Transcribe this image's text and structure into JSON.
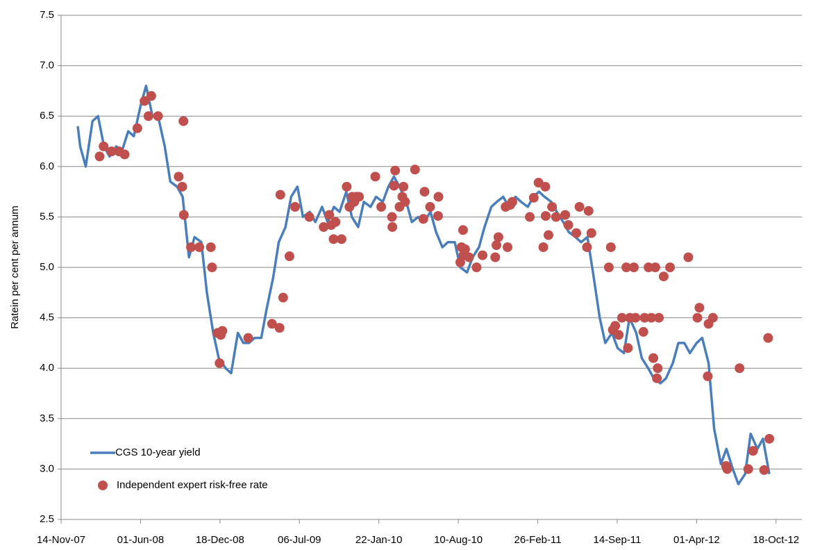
{
  "chart_data": {
    "type": "line",
    "y_label": "Ratein per cent per annum",
    "xlim": [
      "2007-11-14",
      "2012-12-22"
    ],
    "xticks": [
      {
        "value": "2007-11-14",
        "label": "14-Nov-07"
      },
      {
        "value": "2008-06-01",
        "label": "01-Jun-08"
      },
      {
        "value": "2008-12-18",
        "label": "18-Dec-08"
      },
      {
        "value": "2009-07-06",
        "label": "06-Jul-09"
      },
      {
        "value": "2010-01-22",
        "label": "22-Jan-10"
      },
      {
        "value": "2010-08-10",
        "label": "10-Aug-10"
      },
      {
        "value": "2011-02-26",
        "label": "26-Feb-11"
      },
      {
        "value": "2011-09-14",
        "label": "14-Sep-11"
      },
      {
        "value": "2012-04-01",
        "label": "01-Apr-12"
      },
      {
        "value": "2012-10-18",
        "label": "18-Oct-12"
      }
    ],
    "ylim": [
      2.5,
      7.5
    ],
    "yticks": [
      2.5,
      {
        "value": 3,
        "label": "3.0"
      },
      3.5,
      {
        "value": 4,
        "label": "4.0"
      },
      4.5,
      {
        "value": 5,
        "label": "5.0"
      },
      5.5,
      {
        "value": 6,
        "label": "6.0"
      },
      6.5,
      {
        "value": 7,
        "label": "7.0"
      },
      7.5
    ],
    "grid": true,
    "legend": "lower left",
    "series": [
      {
        "name": "CGS 10-year yield",
        "type": "line",
        "color": "#4a7ebb",
        "x": [
          "2007-12-26",
          "2008-01-01",
          "2008-01-15",
          "2008-02-01",
          "2008-02-15",
          "2008-03-01",
          "2008-03-15",
          "2008-04-01",
          "2008-04-15",
          "2008-05-01",
          "2008-05-15",
          "2008-06-01",
          "2008-06-15",
          "2008-07-01",
          "2008-07-15",
          "2008-08-01",
          "2008-08-15",
          "2008-09-01",
          "2008-09-15",
          "2008-10-01",
          "2008-10-15",
          "2008-11-01",
          "2008-11-15",
          "2008-12-01",
          "2008-12-15",
          "2009-01-01",
          "2009-01-15",
          "2009-02-01",
          "2009-02-15",
          "2009-03-01",
          "2009-03-15",
          "2009-04-01",
          "2009-04-15",
          "2009-05-01",
          "2009-05-15",
          "2009-06-01",
          "2009-06-15",
          "2009-07-01",
          "2009-07-15",
          "2009-08-01",
          "2009-08-15",
          "2009-09-01",
          "2009-09-15",
          "2009-10-01",
          "2009-10-15",
          "2009-11-01",
          "2009-11-15",
          "2009-12-01",
          "2009-12-15",
          "2010-01-01",
          "2010-01-15",
          "2010-02-01",
          "2010-02-15",
          "2010-03-01",
          "2010-03-15",
          "2010-04-01",
          "2010-04-15",
          "2010-05-01",
          "2010-05-15",
          "2010-06-01",
          "2010-06-15",
          "2010-07-01",
          "2010-07-15",
          "2010-08-01",
          "2010-08-15",
          "2010-09-01",
          "2010-09-15",
          "2010-10-01",
          "2010-10-15",
          "2010-11-01",
          "2010-11-15",
          "2010-12-01",
          "2010-12-15",
          "2011-01-01",
          "2011-01-15",
          "2011-02-01",
          "2011-02-15",
          "2011-03-01",
          "2011-03-15",
          "2011-04-01",
          "2011-04-15",
          "2011-05-01",
          "2011-05-15",
          "2011-06-01",
          "2011-06-15",
          "2011-07-01",
          "2011-07-15",
          "2011-08-01",
          "2011-08-15",
          "2011-09-01",
          "2011-09-15",
          "2011-10-01",
          "2011-10-15",
          "2011-11-01",
          "2011-11-15",
          "2011-12-01",
          "2011-12-15",
          "2012-01-01",
          "2012-01-15",
          "2012-02-01",
          "2012-02-15",
          "2012-03-01",
          "2012-03-15",
          "2012-04-01",
          "2012-04-15",
          "2012-05-01",
          "2012-05-15",
          "2012-06-01",
          "2012-06-15",
          "2012-07-01",
          "2012-07-15",
          "2012-08-01",
          "2012-08-15",
          "2012-09-01",
          "2012-09-15",
          "2012-10-01"
        ],
        "values": [
          6.4,
          6.2,
          6.0,
          6.45,
          6.5,
          6.2,
          6.1,
          6.2,
          6.15,
          6.35,
          6.3,
          6.6,
          6.8,
          6.5,
          6.5,
          6.2,
          5.85,
          5.8,
          5.7,
          5.1,
          5.3,
          5.25,
          4.75,
          4.35,
          4.1,
          4.0,
          3.95,
          4.35,
          4.25,
          4.25,
          4.3,
          4.3,
          4.6,
          4.9,
          5.25,
          5.4,
          5.7,
          5.8,
          5.5,
          5.55,
          5.45,
          5.6,
          5.45,
          5.6,
          5.55,
          5.75,
          5.5,
          5.4,
          5.65,
          5.6,
          5.7,
          5.65,
          5.8,
          5.9,
          5.8,
          5.65,
          5.45,
          5.5,
          5.45,
          5.55,
          5.35,
          5.2,
          5.25,
          5.25,
          5.0,
          4.95,
          5.1,
          5.2,
          5.4,
          5.6,
          5.65,
          5.7,
          5.6,
          5.7,
          5.65,
          5.6,
          5.7,
          5.75,
          5.7,
          5.65,
          5.55,
          5.45,
          5.35,
          5.3,
          5.25,
          5.3,
          4.95,
          4.5,
          4.25,
          4.35,
          4.2,
          4.15,
          4.5,
          4.35,
          4.1,
          4.0,
          3.9,
          3.85,
          3.9,
          4.05,
          4.25,
          4.25,
          4.15,
          4.25,
          4.3,
          4.05,
          3.4,
          3.05,
          3.2,
          3.0,
          2.85,
          2.95,
          3.35,
          3.2,
          3.3,
          2.95
        ]
      },
      {
        "name": "Independent expert risk-free rate",
        "type": "scatter",
        "color": "#c0504d",
        "x": [
          "2008-02-19",
          "2008-02-29",
          "2008-03-20",
          "2008-04-08",
          "2008-04-22",
          "2008-05-24",
          "2008-06-11",
          "2008-06-21",
          "2008-06-28",
          "2008-07-15",
          "2008-09-05",
          "2008-09-14",
          "2008-09-17",
          "2008-09-18",
          "2008-10-06",
          "2008-10-27",
          "2008-11-25",
          "2008-11-28",
          "2008-12-12",
          "2008-12-17",
          "2008-12-20",
          "2008-12-24",
          "2009-02-27",
          "2009-04-28",
          "2009-05-17",
          "2009-05-19",
          "2009-05-26",
          "2009-06-11",
          "2009-06-25",
          "2009-07-31",
          "2009-09-05",
          "2009-09-19",
          "2009-09-24",
          "2009-09-30",
          "2009-10-05",
          "2009-10-20",
          "2009-11-02",
          "2009-11-09",
          "2009-11-16",
          "2009-11-21",
          "2009-11-26",
          "2009-12-03",
          "2010-01-13",
          "2010-01-28",
          "2010-02-24",
          "2010-02-25",
          "2010-03-01",
          "2010-03-04",
          "2010-03-15",
          "2010-03-22",
          "2010-03-25",
          "2010-03-29",
          "2010-04-23",
          "2010-05-14",
          "2010-05-17",
          "2010-05-31",
          "2010-06-20",
          "2010-06-21",
          "2010-08-15",
          "2010-08-18",
          "2010-08-22",
          "2010-08-23",
          "2010-08-27",
          "2010-09-06",
          "2010-09-25",
          "2010-10-10",
          "2010-11-11",
          "2010-11-14",
          "2010-11-19",
          "2010-12-07",
          "2010-12-12",
          "2010-12-19",
          "2010-12-24",
          "2011-02-06",
          "2011-02-16",
          "2011-02-28",
          "2011-03-12",
          "2011-03-17",
          "2011-03-18",
          "2011-03-25",
          "2011-04-03",
          "2011-04-13",
          "2011-05-06",
          "2011-05-14",
          "2011-06-03",
          "2011-06-11",
          "2011-06-30",
          "2011-07-04",
          "2011-07-11",
          "2011-08-24",
          "2011-08-29",
          "2011-09-03",
          "2011-09-09",
          "2011-09-18",
          "2011-09-26",
          "2011-10-07",
          "2011-10-11",
          "2011-10-16",
          "2011-10-26",
          "2011-10-30",
          "2011-11-19",
          "2011-11-22",
          "2011-12-02",
          "2011-12-09",
          "2011-12-14",
          "2011-12-19",
          "2011-12-23",
          "2011-12-25",
          "2011-12-28",
          "2012-01-09",
          "2012-01-25",
          "2012-03-11",
          "2012-04-03",
          "2012-04-08",
          "2012-04-29",
          "2012-05-01",
          "2012-05-12",
          "2012-06-14",
          "2012-06-17",
          "2012-07-18",
          "2012-08-09",
          "2012-08-21",
          "2012-09-18",
          "2012-09-28",
          "2012-10-01"
        ],
        "values": [
          6.1,
          6.2,
          6.15,
          6.15,
          6.12,
          6.38,
          6.65,
          6.5,
          6.7,
          6.5,
          5.9,
          5.8,
          6.45,
          5.52,
          5.2,
          5.2,
          5.2,
          5.0,
          4.35,
          4.05,
          4.33,
          4.37,
          4.3,
          4.44,
          4.4,
          5.72,
          4.7,
          5.11,
          5.6,
          5.5,
          5.4,
          5.52,
          5.42,
          5.28,
          5.45,
          5.28,
          5.8,
          5.6,
          5.7,
          5.65,
          5.7,
          5.7,
          5.9,
          5.6,
          5.5,
          5.4,
          5.81,
          5.96,
          5.6,
          5.7,
          5.8,
          5.65,
          5.97,
          5.48,
          5.75,
          5.6,
          5.51,
          5.7,
          5.05,
          5.2,
          5.37,
          5.12,
          5.18,
          5.1,
          5.0,
          5.12,
          5.1,
          5.22,
          5.3,
          5.6,
          5.2,
          5.62,
          5.65,
          5.5,
          5.69,
          5.84,
          5.2,
          5.8,
          5.51,
          5.32,
          5.6,
          5.5,
          5.52,
          5.42,
          5.34,
          5.6,
          5.2,
          5.56,
          5.34,
          5.0,
          5.2,
          4.38,
          4.42,
          4.33,
          4.5,
          5.0,
          4.2,
          4.5,
          5.0,
          4.5,
          4.36,
          4.5,
          5.0,
          4.5,
          4.1,
          5.0,
          3.9,
          4.0,
          4.5,
          4.91,
          5.0,
          5.1,
          4.5,
          4.6,
          3.92,
          4.44,
          4.5,
          3.03,
          3.0,
          4.0,
          3.0,
          3.18,
          2.99,
          4.3,
          3.3
        ]
      }
    ]
  }
}
